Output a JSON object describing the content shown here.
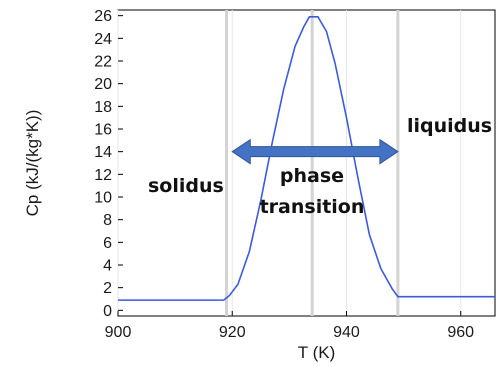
{
  "chart_data": {
    "type": "line",
    "title": "",
    "xlabel": "T (K)",
    "ylabel": "Cp (kJ/(kg*K))",
    "xlim": [
      900,
      966
    ],
    "ylim": [
      -0.5,
      26.5
    ],
    "x_ticks": [
      900,
      920,
      940,
      960
    ],
    "y_ticks": [
      0,
      2,
      4,
      6,
      8,
      10,
      12,
      14,
      16,
      18,
      20,
      22,
      24,
      26
    ],
    "grid": "vertical lines at the top and bottom tick marks only",
    "vertical_lines": [
      919,
      934,
      949
    ],
    "series": [
      {
        "color": "#3b5bdb",
        "x": [
          900,
          918.5,
          919.5,
          921,
          923,
          925,
          927,
          929,
          931,
          932.5,
          933.5,
          935,
          936.5,
          938,
          940,
          942,
          944,
          946,
          948,
          949,
          966
        ],
        "y": [
          0.9,
          0.9,
          1.3,
          2.3,
          5.2,
          9.7,
          14.8,
          19.5,
          23.3,
          25.0,
          25.9,
          25.9,
          24.6,
          21.8,
          17.0,
          11.7,
          6.7,
          3.7,
          1.9,
          1.2,
          1.2
        ]
      }
    ],
    "annotations": [
      {
        "text": "solidus",
        "color": "#111111"
      },
      {
        "text": "phase",
        "color": "#111111"
      },
      {
        "text": "transition",
        "color": "#111111"
      },
      {
        "text": "liquidus",
        "color": "#111111"
      }
    ],
    "arrow": {
      "from": 920,
      "to": 949,
      "y": 14,
      "color": "#4472c4"
    }
  }
}
